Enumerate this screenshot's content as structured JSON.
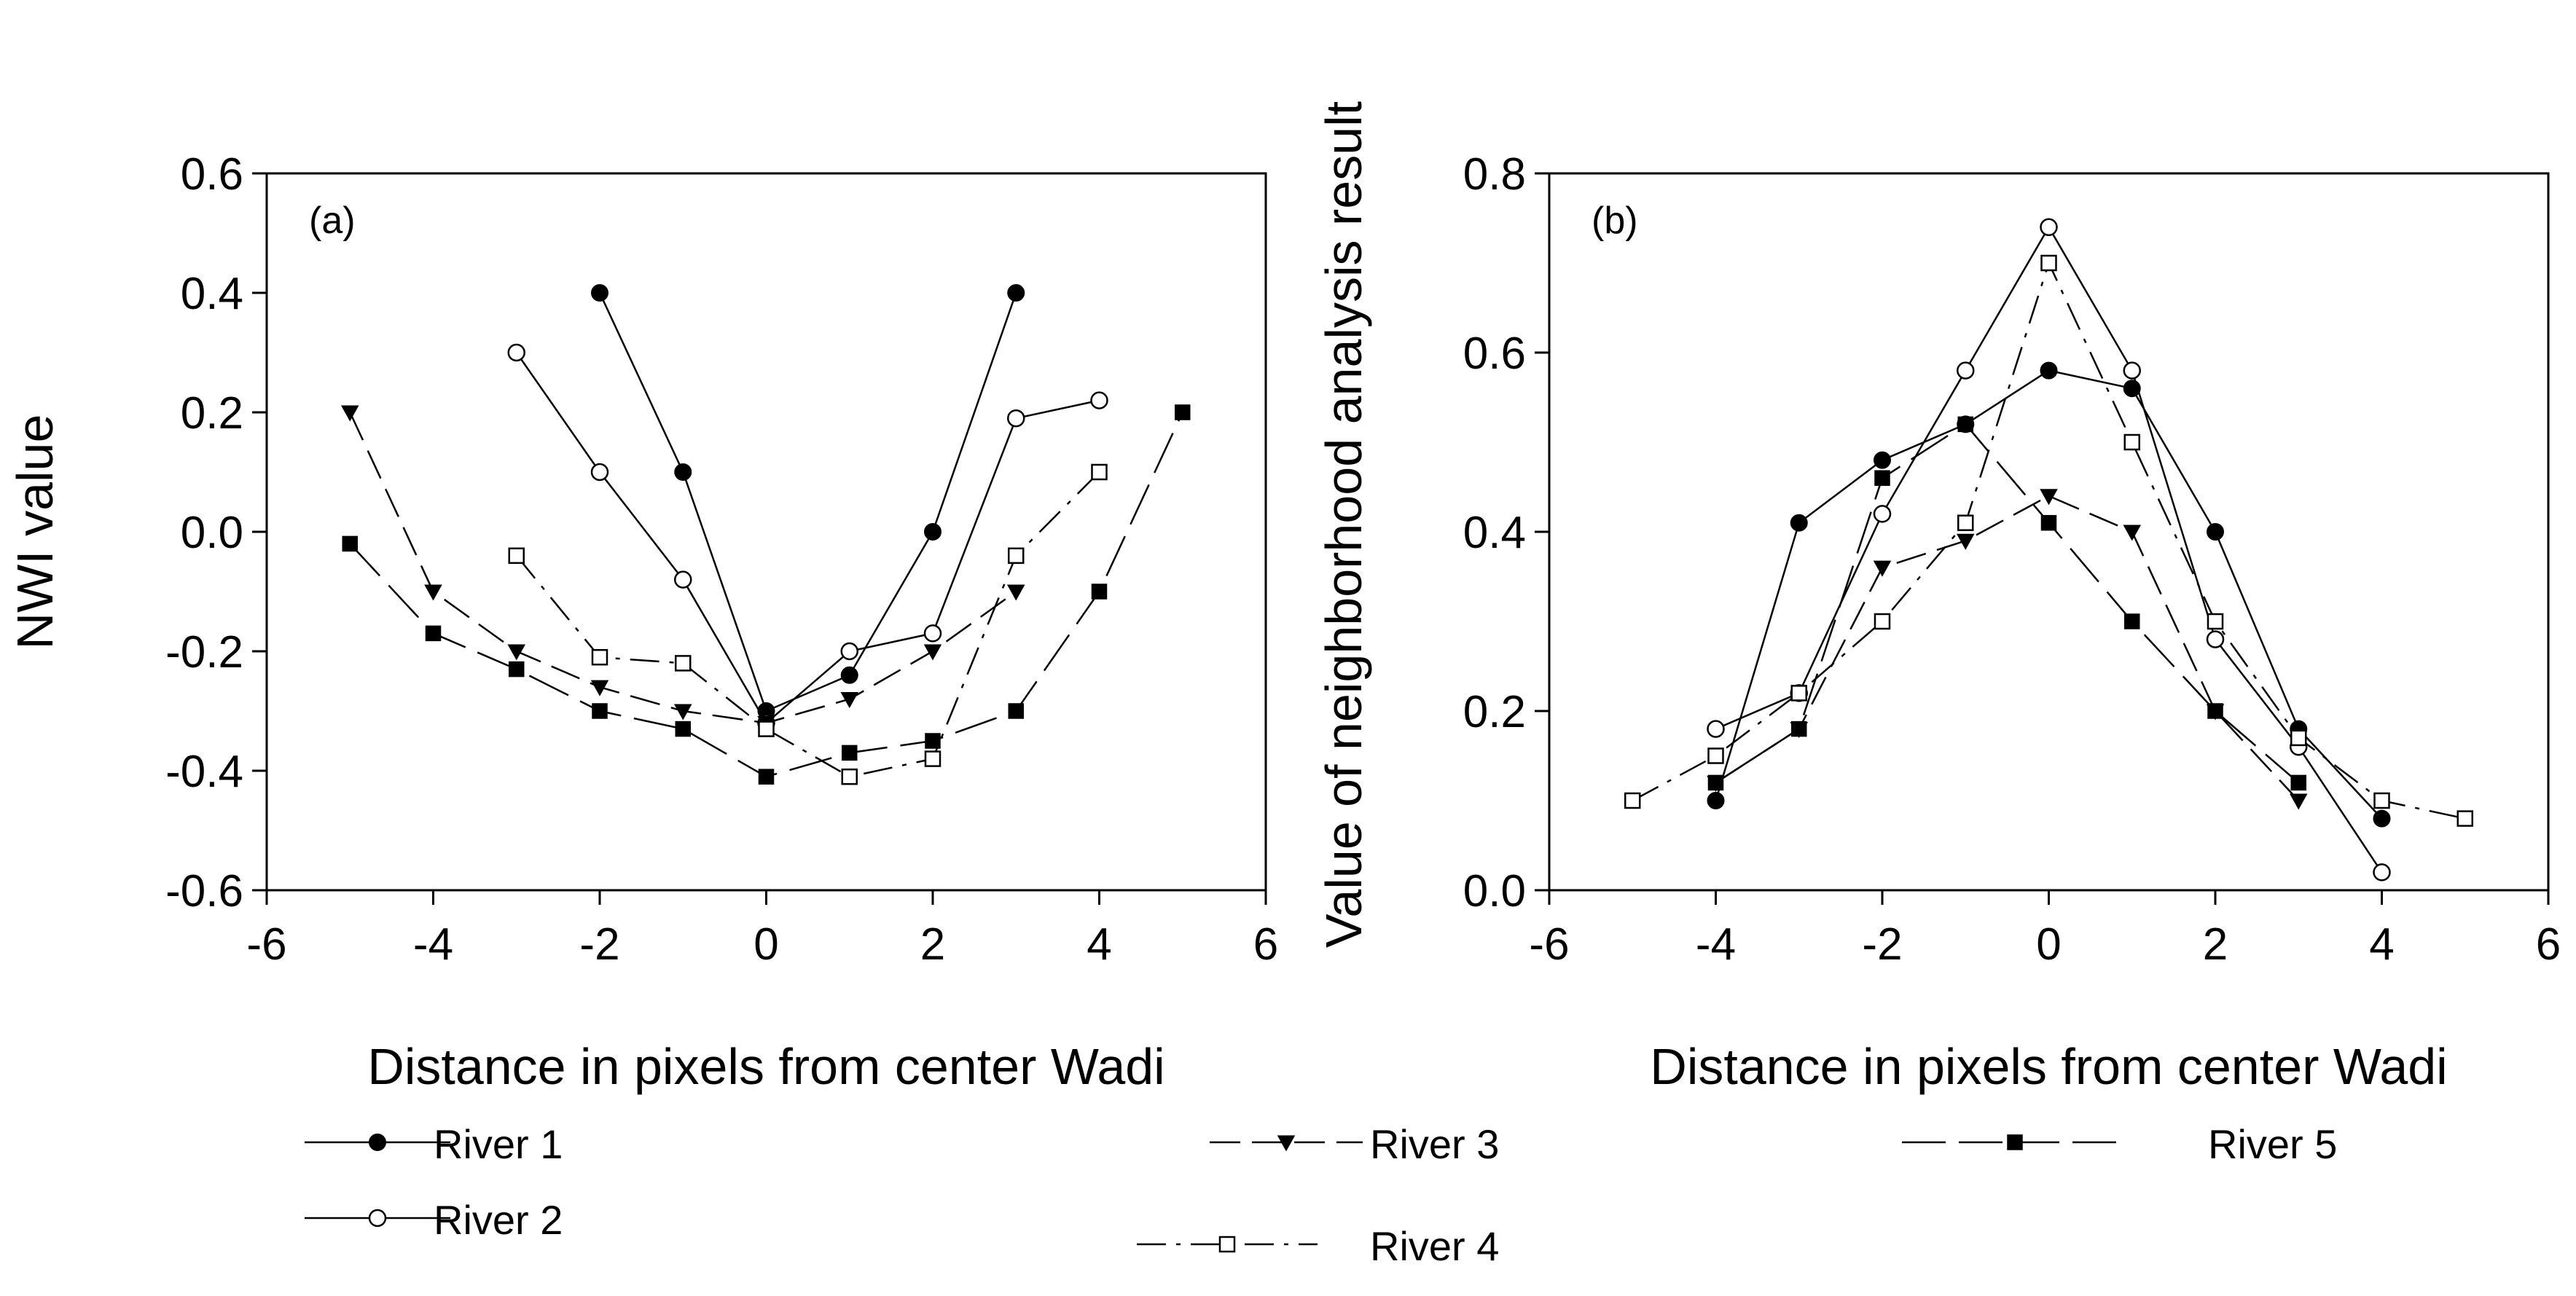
{
  "figure": {
    "legend": [
      "River 1",
      "River 2",
      "River 3",
      "River 4",
      "River 5"
    ]
  },
  "chart_data": [
    {
      "type": "line",
      "panel_label": "(a)",
      "xlabel": "Distance in pixels from center Wadi",
      "ylabel": "NWI value",
      "xlim": [
        -6,
        6
      ],
      "ylim": [
        -0.6,
        0.6
      ],
      "xticks": [
        -6,
        -4,
        -2,
        0,
        2,
        4,
        6
      ],
      "yticks": [
        -0.6,
        -0.4,
        -0.2,
        0.0,
        0.2,
        0.4,
        0.6
      ],
      "xtick_labels": [
        "-6",
        "-4",
        "-2",
        "0",
        "2",
        "4",
        "6"
      ],
      "ytick_labels": [
        "-0.6",
        "-0.4",
        "-0.2",
        "0.0",
        "0.2",
        "0.4",
        "0.6"
      ],
      "grid": false,
      "series": [
        {
          "name": "River 1",
          "marker": "filled-circle",
          "dash": "solid",
          "x": [
            -2,
            -1,
            0,
            1,
            2,
            3
          ],
          "y": [
            0.4,
            0.1,
            -0.3,
            -0.24,
            0.0,
            0.4
          ]
        },
        {
          "name": "River 2",
          "marker": "open-circle",
          "dash": "solid",
          "x": [
            -3,
            -2,
            -1,
            0,
            1,
            2,
            3,
            4
          ],
          "y": [
            0.3,
            0.1,
            -0.08,
            -0.32,
            -0.2,
            -0.17,
            0.19,
            0.22
          ]
        },
        {
          "name": "River 3",
          "marker": "filled-triangle-down",
          "dash": "long-dash",
          "x": [
            -5,
            -4,
            -3,
            -2,
            -1,
            0,
            1,
            2,
            3
          ],
          "y": [
            0.2,
            -0.1,
            -0.2,
            -0.26,
            -0.3,
            -0.32,
            -0.28,
            -0.2,
            -0.1
          ]
        },
        {
          "name": "River 4",
          "marker": "open-square",
          "dash": "dash-dot",
          "x": [
            -3,
            -2,
            -1,
            0,
            1,
            2,
            3,
            4
          ],
          "y": [
            -0.04,
            -0.21,
            -0.22,
            -0.33,
            -0.41,
            -0.38,
            -0.04,
            0.1
          ]
        },
        {
          "name": "River 5",
          "marker": "filled-square",
          "dash": "long-dash-2",
          "x": [
            -5,
            -4,
            -3,
            -2,
            -1,
            0,
            1,
            2,
            3,
            4,
            5
          ],
          "y": [
            -0.02,
            -0.17,
            -0.23,
            -0.3,
            -0.33,
            -0.41,
            -0.37,
            -0.35,
            -0.3,
            -0.1,
            0.2
          ]
        }
      ]
    },
    {
      "type": "line",
      "panel_label": "(b)",
      "xlabel": "Distance in pixels from center Wadi",
      "ylabel": "Value of neighborhood analysis result",
      "xlim": [
        -6,
        6
      ],
      "ylim": [
        0.0,
        0.8
      ],
      "xticks": [
        -6,
        -4,
        -2,
        0,
        2,
        4,
        6
      ],
      "yticks": [
        0.0,
        0.2,
        0.4,
        0.6,
        0.8
      ],
      "xtick_labels": [
        "-6",
        "-4",
        "-2",
        "0",
        "2",
        "4",
        "6"
      ],
      "ytick_labels": [
        "0.0",
        "0.2",
        "0.4",
        "0.6",
        "0.8"
      ],
      "grid": false,
      "series": [
        {
          "name": "River 1",
          "marker": "filled-circle",
          "dash": "solid",
          "x": [
            -4,
            -3,
            -2,
            -1,
            0,
            1,
            2,
            3,
            4
          ],
          "y": [
            0.1,
            0.41,
            0.48,
            0.52,
            0.58,
            0.56,
            0.4,
            0.18,
            0.08
          ]
        },
        {
          "name": "River 2",
          "marker": "open-circle",
          "dash": "solid",
          "x": [
            -4,
            -3,
            -2,
            -1,
            0,
            1,
            2,
            3,
            4
          ],
          "y": [
            0.18,
            0.22,
            0.42,
            0.58,
            0.74,
            0.58,
            0.28,
            0.16,
            0.02
          ]
        },
        {
          "name": "River 3",
          "marker": "filled-triangle-down",
          "dash": "long-dash",
          "x": [
            -4,
            -3,
            -2,
            -1,
            0,
            1,
            2,
            3
          ],
          "y": [
            0.12,
            0.18,
            0.36,
            0.39,
            0.44,
            0.4,
            0.2,
            0.1
          ]
        },
        {
          "name": "River 4",
          "marker": "open-square",
          "dash": "dash-dot",
          "x": [
            -5,
            -4,
            -3,
            -2,
            -1,
            0,
            1,
            2,
            3,
            4,
            5
          ],
          "y": [
            0.1,
            0.15,
            0.22,
            0.3,
            0.41,
            0.7,
            0.5,
            0.3,
            0.17,
            0.1,
            0.08
          ]
        },
        {
          "name": "River 5",
          "marker": "filled-square",
          "dash": "long-dash-2",
          "x": [
            -4,
            -3,
            -2,
            -1,
            0,
            1,
            2,
            3
          ],
          "y": [
            0.12,
            0.18,
            0.46,
            0.52,
            0.41,
            0.3,
            0.2,
            0.12
          ]
        }
      ]
    }
  ]
}
